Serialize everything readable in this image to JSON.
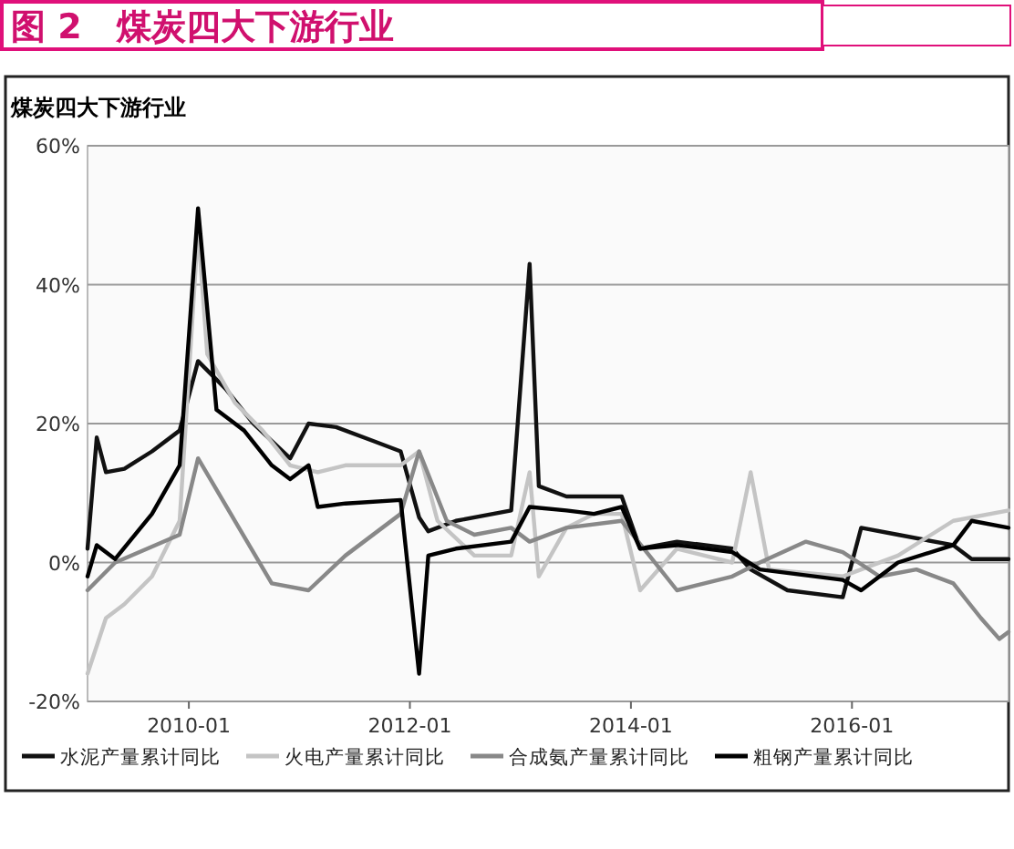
{
  "chart_data": {
    "type": "line",
    "title": "图 2　煤炭四大下游行业",
    "subtitle": "煤炭四大下游行业",
    "xlim": [
      "2009-02",
      "2017-06"
    ],
    "xticks": [
      "2010-01",
      "2012-01",
      "2014-01",
      "2016-01"
    ],
    "ylim": [
      -20,
      60
    ],
    "yticks": [
      {
        "value": -20,
        "label": "-20%"
      },
      {
        "value": 0,
        "label": "0%"
      },
      {
        "value": 20,
        "label": "20%"
      },
      {
        "value": 40,
        "label": "40%"
      },
      {
        "value": 60,
        "label": "60%"
      }
    ],
    "grid": "y",
    "legend": "bottom",
    "marker": "none",
    "line_style": "solid",
    "series": [
      {
        "name": "水泥产量累计同比",
        "color": "#111111",
        "x": [
          "2009-02",
          "2009-03",
          "2009-04",
          "2009-06",
          "2009-09",
          "2009-12",
          "2010-02",
          "2010-05",
          "2010-08",
          "2010-12",
          "2011-02",
          "2011-05",
          "2011-09",
          "2011-12",
          "2012-02",
          "2012-03",
          "2012-06",
          "2012-12",
          "2013-02",
          "2013-03",
          "2013-06",
          "2013-12",
          "2014-02",
          "2014-06",
          "2014-12",
          "2015-02",
          "2015-06",
          "2015-12",
          "2016-02",
          "2016-06",
          "2016-12",
          "2017-02",
          "2017-06"
        ],
        "values": [
          2,
          18,
          13,
          13.5,
          16,
          19,
          29,
          25,
          20,
          15,
          20,
          19.5,
          17.5,
          16,
          6.5,
          4.5,
          6,
          7.5,
          43,
          11,
          9.5,
          9.5,
          2,
          3,
          2,
          -1,
          -4,
          -5,
          5,
          4,
          2.5,
          0.5,
          0.5
        ]
      },
      {
        "name": "火电产量累计同比",
        "color": "#c4c4c4",
        "x": [
          "2009-02",
          "2009-04",
          "2009-06",
          "2009-09",
          "2009-12",
          "2010-02",
          "2010-03",
          "2010-06",
          "2010-09",
          "2010-12",
          "2011-03",
          "2011-06",
          "2011-12",
          "2012-02",
          "2012-04",
          "2012-08",
          "2012-12",
          "2013-02",
          "2013-03",
          "2013-06",
          "2013-09",
          "2013-12",
          "2014-02",
          "2014-06",
          "2014-12",
          "2015-02",
          "2015-04",
          "2015-12",
          "2016-02",
          "2016-06",
          "2016-12",
          "2017-06"
        ],
        "values": [
          -16,
          -8,
          -6,
          -2,
          6,
          48,
          30,
          23,
          19,
          14,
          13,
          14,
          14,
          16,
          6,
          1,
          1,
          13,
          -2,
          5,
          7,
          7,
          -4,
          2,
          0,
          13,
          -1,
          -2,
          -1,
          1,
          6,
          7.5
        ]
      },
      {
        "name": "合成氨产量累计同比",
        "color": "#888888",
        "x": [
          "2009-02",
          "2009-05",
          "2009-12",
          "2010-02",
          "2010-06",
          "2010-10",
          "2011-02",
          "2011-06",
          "2011-12",
          "2012-02",
          "2012-05",
          "2012-08",
          "2012-12",
          "2013-02",
          "2013-06",
          "2013-12",
          "2014-03",
          "2014-06",
          "2014-12",
          "2015-03",
          "2015-08",
          "2015-12",
          "2016-04",
          "2016-08",
          "2016-12",
          "2017-03",
          "2017-05",
          "2017-06"
        ],
        "values": [
          -4,
          0,
          4,
          15,
          6,
          -3,
          -4,
          1,
          7,
          16,
          6,
          4,
          5,
          3,
          5,
          6,
          1,
          -4,
          -2,
          0,
          3,
          1.5,
          -2,
          -1,
          -3,
          -8,
          -11,
          -10
        ]
      },
      {
        "name": "粗钢产量累计同比",
        "color": "#000000",
        "x": [
          "2009-02",
          "2009-03",
          "2009-05",
          "2009-09",
          "2009-12",
          "2010-02",
          "2010-04",
          "2010-07",
          "2010-10",
          "2010-12",
          "2011-02",
          "2011-03",
          "2011-06",
          "2011-12",
          "2012-02",
          "2012-03",
          "2012-06",
          "2012-12",
          "2013-02",
          "2013-06",
          "2013-09",
          "2013-12",
          "2014-02",
          "2014-06",
          "2014-12",
          "2015-03",
          "2015-12",
          "2016-02",
          "2016-06",
          "2016-12",
          "2017-02",
          "2017-06"
        ],
        "values": [
          -2,
          2.5,
          0.5,
          7,
          14,
          51,
          22,
          19,
          14,
          12,
          14,
          8,
          8.5,
          9,
          -16,
          1,
          2,
          3,
          8,
          7.5,
          7,
          8,
          2,
          2.5,
          1.5,
          -1,
          -2.5,
          -4,
          0,
          2.5,
          6,
          5
        ]
      }
    ]
  }
}
